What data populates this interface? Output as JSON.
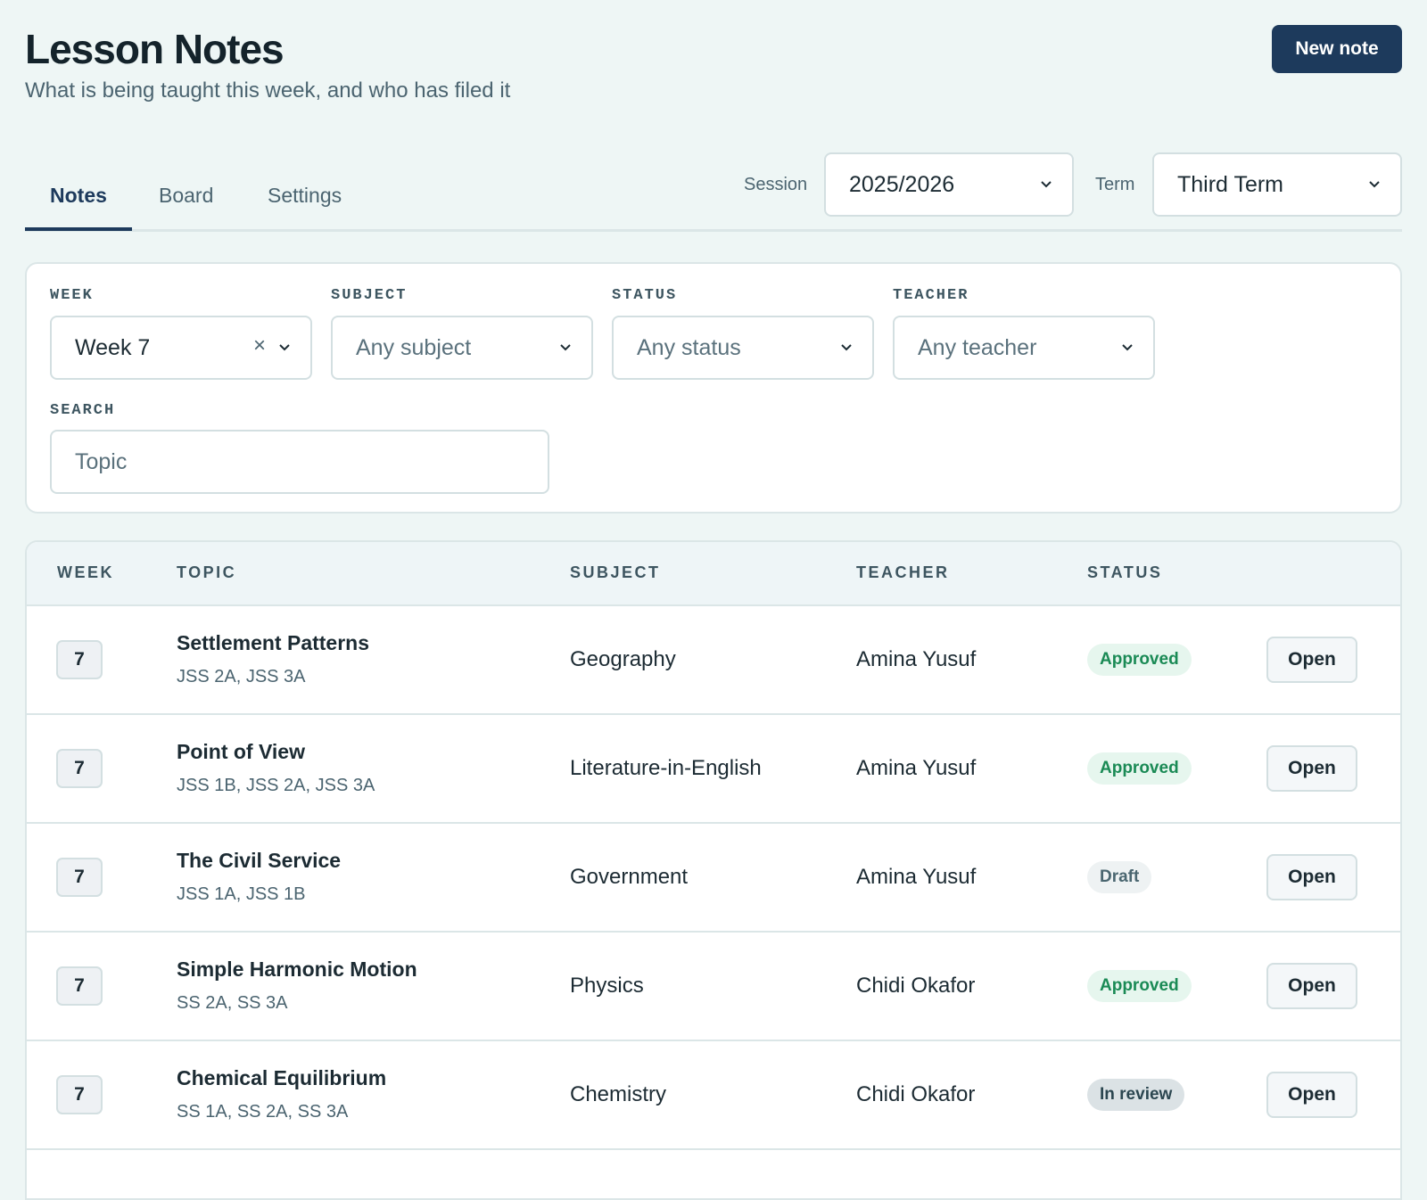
{
  "header": {
    "title": "Lesson Notes",
    "subtitle": "What is being taught this week, and who has filed it",
    "new_button": "New note"
  },
  "tabs": [
    "Notes",
    "Board",
    "Settings"
  ],
  "session": {
    "label": "Session",
    "value": "2025/2026"
  },
  "term": {
    "label": "Term",
    "value": "Third Term"
  },
  "filters": [
    {
      "label": "WEEK",
      "value": "Week 7"
    },
    {
      "label": "SUBJECT",
      "placeholder": "Any subject"
    },
    {
      "label": "STATUS",
      "placeholder": "Any status"
    },
    {
      "label": "TEACHER",
      "placeholder": "Any teacher"
    }
  ],
  "search": {
    "label": "SEARCH",
    "placeholder": "Topic"
  },
  "table": {
    "columns": [
      "WEEK",
      "TOPIC",
      "SUBJECT",
      "TEACHER",
      "STATUS"
    ],
    "rows": [
      {
        "week": "7",
        "topic": "Settlement Patterns",
        "classes": "JSS 2A, JSS 3A",
        "subject": "Geography",
        "teacher": "Amina Yusuf",
        "status": "Approved",
        "action": "Open"
      },
      {
        "week": "7",
        "topic": "Point of View",
        "classes": "JSS 1B, JSS 2A, JSS 3A",
        "subject": "Literature-in-English",
        "teacher": "Amina Yusuf",
        "status": "Approved",
        "action": "Open"
      },
      {
        "week": "7",
        "topic": "The Civil Service",
        "classes": "JSS 1A, JSS 1B",
        "subject": "Government",
        "teacher": "Amina Yusuf",
        "status": "Draft",
        "action": "Open"
      },
      {
        "week": "7",
        "topic": "Simple Harmonic Motion",
        "classes": "SS 2A, SS 3A",
        "subject": "Physics",
        "teacher": "Chidi Okafor",
        "status": "Approved",
        "action": "Open"
      },
      {
        "week": "7",
        "topic": "Chemical Equilibrium",
        "classes": "SS 1A, SS 2A, SS 3A",
        "subject": "Chemistry",
        "teacher": "Chidi Okafor",
        "status": "In review",
        "action": "Open"
      }
    ]
  }
}
